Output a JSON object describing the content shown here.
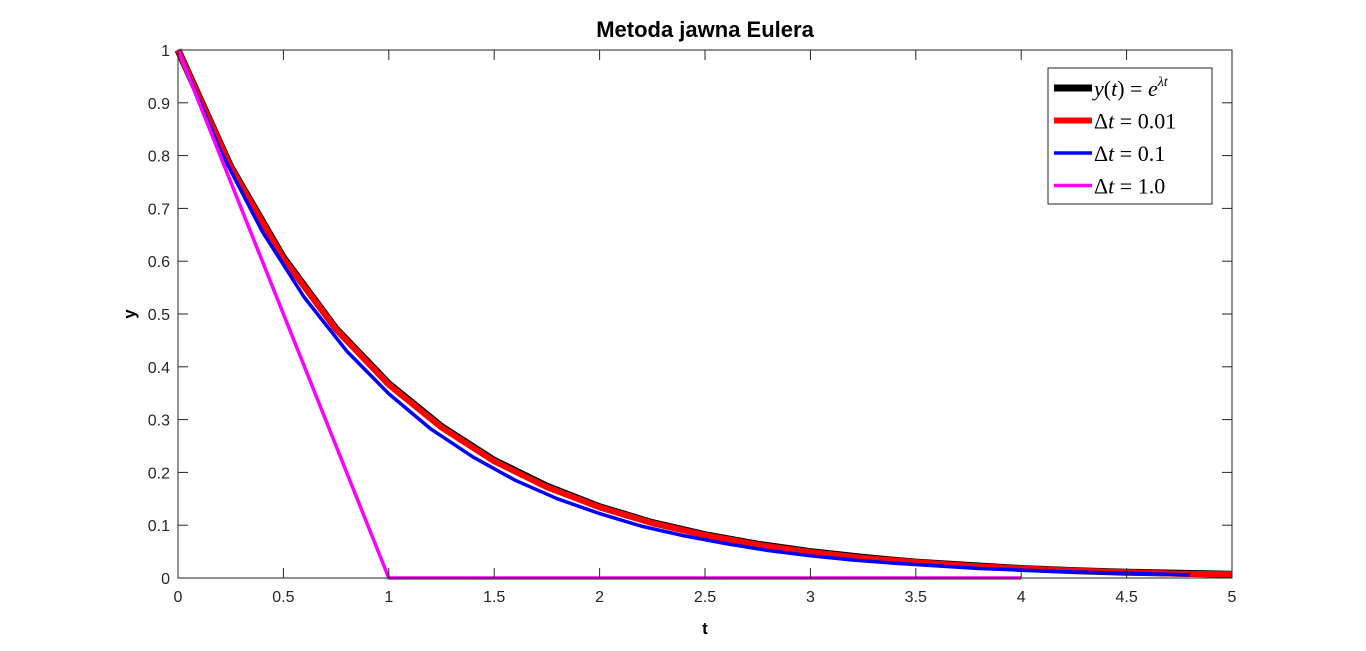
{
  "chart_data": {
    "type": "line",
    "title": "Metoda jawna Eulera",
    "xlabel": "t",
    "ylabel": "y",
    "xlim": [
      0,
      5
    ],
    "ylim": [
      0,
      1
    ],
    "xticks": [
      0,
      0.5,
      1,
      1.5,
      2,
      2.5,
      3,
      3.5,
      4,
      4.5,
      5
    ],
    "xtick_labels": [
      "0",
      "0.5",
      "1",
      "1.5",
      "2",
      "2.5",
      "3",
      "3.5",
      "4",
      "4.5",
      "5"
    ],
    "yticks": [
      0,
      0.1,
      0.2,
      0.3,
      0.4,
      0.5,
      0.6,
      0.7,
      0.8,
      0.9,
      1
    ],
    "ytick_labels": [
      "0",
      "0.1",
      "0.2",
      "0.3",
      "0.4",
      "0.5",
      "0.6",
      "0.7",
      "0.8",
      "0.9",
      "1"
    ],
    "grid": false,
    "legend_position": "top-right",
    "series": [
      {
        "name": "y(t) = e^{λt}",
        "legend_parts": [
          {
            "text": "y",
            "italic": true
          },
          {
            "text": "(",
            "italic": false
          },
          {
            "text": "t",
            "italic": true
          },
          {
            "text": ") = ",
            "italic": false
          },
          {
            "text": "e",
            "italic": true
          },
          {
            "text": "λt",
            "italic": true,
            "sup": true
          }
        ],
        "color": "#000000",
        "x": [
          0,
          0.25,
          0.5,
          0.75,
          1,
          1.25,
          1.5,
          1.75,
          2,
          2.25,
          2.5,
          2.75,
          3,
          3.25,
          3.5,
          3.75,
          4,
          4.25,
          4.5,
          4.75,
          5
        ],
        "y": [
          1,
          0.779,
          0.607,
          0.472,
          0.368,
          0.287,
          0.223,
          0.174,
          0.135,
          0.105,
          0.082,
          0.064,
          0.05,
          0.039,
          0.03,
          0.024,
          0.018,
          0.014,
          0.011,
          0.009,
          0.007
        ]
      },
      {
        "name": "Δt = 0.01",
        "legend_parts": [
          {
            "text": "Δ",
            "italic": false
          },
          {
            "text": "t",
            "italic": true
          },
          {
            "text": " = 0.01",
            "italic": false
          }
        ],
        "color": "#ff0000",
        "x": [
          0,
          0.25,
          0.5,
          0.75,
          1,
          1.25,
          1.5,
          1.75,
          2,
          2.25,
          2.5,
          2.75,
          3,
          3.25,
          3.5,
          3.75,
          4,
          4.25,
          4.5,
          4.75,
          5
        ],
        "y": [
          1,
          0.778,
          0.605,
          0.471,
          0.366,
          0.285,
          0.221,
          0.172,
          0.134,
          0.104,
          0.081,
          0.063,
          0.049,
          0.038,
          0.03,
          0.023,
          0.018,
          0.014,
          0.011,
          0.008,
          0.007
        ]
      },
      {
        "name": "Δt = 0.1",
        "legend_parts": [
          {
            "text": "Δ",
            "italic": false
          },
          {
            "text": "t",
            "italic": true
          },
          {
            "text": " = 0.1",
            "italic": false
          }
        ],
        "color": "#0000ff",
        "x": [
          0,
          0.2,
          0.4,
          0.6,
          0.8,
          1.0,
          1.2,
          1.4,
          1.6,
          1.8,
          2.0,
          2.2,
          2.4,
          2.6,
          2.8,
          3.0,
          3.2,
          3.4,
          3.6,
          3.8,
          4.0,
          4.2,
          4.4,
          4.6,
          4.8
        ],
        "y": [
          1,
          0.81,
          0.656,
          0.531,
          0.43,
          0.349,
          0.282,
          0.229,
          0.185,
          0.15,
          0.122,
          0.098,
          0.08,
          0.065,
          0.052,
          0.042,
          0.034,
          0.028,
          0.023,
          0.018,
          0.015,
          0.012,
          0.01,
          0.008,
          0.006
        ]
      },
      {
        "name": "Δt = 1.0",
        "legend_parts": [
          {
            "text": "Δ",
            "italic": false
          },
          {
            "text": "t",
            "italic": true
          },
          {
            "text": " = 1.0",
            "italic": false
          }
        ],
        "color": "#ff00ff",
        "x": [
          0,
          1,
          2,
          3,
          4
        ],
        "y": [
          1,
          0,
          0,
          0,
          0
        ]
      }
    ]
  }
}
